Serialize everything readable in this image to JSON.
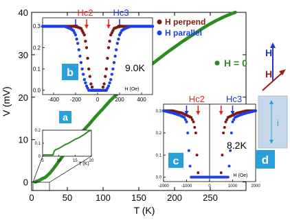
{
  "chart_data": [
    {
      "id": "main",
      "type": "scatter",
      "xlabel": "T (K)",
      "ylabel": "V (mV)",
      "xlim": [
        0,
        300
      ],
      "ylim": [
        -2,
        40
      ],
      "xticks": [
        0,
        50,
        100,
        150,
        200,
        250
      ],
      "yticks": [
        0,
        10,
        20,
        30,
        40
      ],
      "legend": "H = 0",
      "color": "#2e8b22",
      "points": [
        [
          5,
          0
        ],
        [
          8,
          0.2
        ],
        [
          10,
          0.3
        ],
        [
          12,
          0.5
        ],
        [
          15,
          0.8
        ],
        [
          18,
          1.0
        ],
        [
          20,
          1.2
        ],
        [
          25,
          2.0
        ],
        [
          30,
          3.0
        ],
        [
          40,
          5.3
        ],
        [
          50,
          7.5
        ],
        [
          60,
          9.7
        ],
        [
          70,
          11.7
        ],
        [
          80,
          13.5
        ],
        [
          90,
          15.5
        ],
        [
          100,
          17.3
        ],
        [
          110,
          19.2
        ],
        [
          120,
          20.8
        ],
        [
          130,
          22.4
        ],
        [
          140,
          23.9
        ],
        [
          150,
          25.3
        ],
        [
          160,
          26.7
        ],
        [
          170,
          28.0
        ],
        [
          180,
          29.3
        ],
        [
          190,
          30.6
        ],
        [
          200,
          31.8
        ],
        [
          210,
          33.0
        ],
        [
          220,
          34.1
        ],
        [
          230,
          35.2
        ],
        [
          240,
          36.3
        ],
        [
          250,
          37.3
        ],
        [
          260,
          38.2
        ],
        [
          270,
          39.0
        ],
        [
          280,
          39.7
        ],
        [
          285,
          40.0
        ]
      ]
    },
    {
      "id": "a",
      "type": "line",
      "panel_label": "a",
      "xlabel": "T (K)",
      "xlim": [
        5,
        20
      ],
      "ylim": [
        0,
        0.2
      ],
      "xticks": [
        5,
        10,
        15,
        20
      ],
      "yticks": [
        0.0,
        0.1,
        0.2
      ],
      "ytick_labels": [
        "0",
        "0.1",
        "0.2"
      ],
      "color": "#2e8b22",
      "points": [
        [
          5,
          0.01
        ],
        [
          6,
          0.01
        ],
        [
          7,
          0.01
        ],
        [
          8,
          0.01
        ],
        [
          8.2,
          0.01
        ],
        [
          8.6,
          0.04
        ],
        [
          9,
          0.05
        ],
        [
          10,
          0.06
        ],
        [
          11,
          0.075
        ],
        [
          12,
          0.09
        ],
        [
          13,
          0.1
        ],
        [
          14,
          0.115
        ],
        [
          15,
          0.13
        ],
        [
          16,
          0.14
        ],
        [
          17,
          0.155
        ],
        [
          18,
          0.17
        ],
        [
          19,
          0.19
        ],
        [
          20,
          0.2
        ]
      ]
    },
    {
      "id": "b",
      "type": "scatter",
      "panel_label": "b",
      "xlabel": "H (Oe)",
      "annotation": "9.0K",
      "xlim": [
        -500,
        500
      ],
      "ylim": [
        -0.02,
        0.34
      ],
      "xticks": [
        -400,
        -200,
        0,
        200,
        400
      ],
      "yticks": [
        0.0,
        0.1,
        0.2,
        0.3
      ],
      "ytick_labels": [
        "0.0",
        "0.1",
        "0.2",
        "0.3"
      ],
      "markers": [
        {
          "label": "Hc2",
          "x": -100,
          "color": "#e8231f"
        },
        {
          "label": "",
          "x": 100,
          "color": "#e8231f"
        },
        {
          "label": "",
          "x": -200,
          "color": "#1d35c8"
        },
        {
          "label": "Hc3",
          "x": 200,
          "color": "#1d35c8"
        }
      ],
      "series": [
        {
          "name": "H perpend",
          "color": "#7b1818",
          "points": [
            [
              -500,
              0.3
            ],
            [
              -400,
              0.3
            ],
            [
              -300,
              0.3
            ],
            [
              -200,
              0.3
            ],
            [
              -150,
              0.29
            ],
            [
              -120,
              0.26
            ],
            [
              -100,
              0.2
            ],
            [
              -80,
              0.1
            ],
            [
              -60,
              0.03
            ],
            [
              -40,
              0
            ],
            [
              0,
              0
            ],
            [
              40,
              0
            ],
            [
              60,
              0.03
            ],
            [
              80,
              0.1
            ],
            [
              100,
              0.2
            ],
            [
              120,
              0.26
            ],
            [
              150,
              0.29
            ],
            [
              200,
              0.3
            ],
            [
              300,
              0.3
            ],
            [
              400,
              0.3
            ],
            [
              500,
              0.3
            ]
          ]
        },
        {
          "name": "H parallel",
          "color": "#1f3fe6",
          "points": [
            [
              -500,
              0.3
            ],
            [
              -400,
              0.3
            ],
            [
              -300,
              0.3
            ],
            [
              -250,
              0.29
            ],
            [
              -220,
              0.28
            ],
            [
              -200,
              0.26
            ],
            [
              -180,
              0.22
            ],
            [
              -160,
              0.16
            ],
            [
              -140,
              0.1
            ],
            [
              -120,
              0.05
            ],
            [
              -100,
              0.02
            ],
            [
              -80,
              0
            ],
            [
              0,
              0
            ],
            [
              80,
              0
            ],
            [
              100,
              0.02
            ],
            [
              120,
              0.05
            ],
            [
              140,
              0.1
            ],
            [
              160,
              0.16
            ],
            [
              180,
              0.22
            ],
            [
              200,
              0.26
            ],
            [
              220,
              0.28
            ],
            [
              250,
              0.29
            ],
            [
              300,
              0.3
            ],
            [
              400,
              0.3
            ],
            [
              500,
              0.3
            ]
          ]
        }
      ]
    },
    {
      "id": "c",
      "type": "scatter",
      "panel_label": "c",
      "xlabel": "H (Oe)",
      "annotation": "8.2K",
      "xlim": [
        -2000,
        2000
      ],
      "ylim": [
        -0.02,
        0.33
      ],
      "xticks": [
        -2000,
        -1000,
        0,
        1000,
        2000
      ],
      "yticks": [
        0.0,
        0.1,
        0.2,
        0.3
      ],
      "ytick_labels": [
        "0.0",
        "0.1",
        "0.2",
        "0.3"
      ],
      "markers": [
        {
          "label": "Hc2",
          "x": -500,
          "color": "#e8231f"
        },
        {
          "label": "",
          "x": 500,
          "color": "#e8231f"
        },
        {
          "label": "",
          "x": -1000,
          "color": "#1d35c8"
        },
        {
          "label": "Hc3",
          "x": 1000,
          "color": "#1d35c8"
        }
      ],
      "series": [
        {
          "name": "H perpend",
          "color": "#7b1818",
          "points": [
            [
              -2000,
              0.3
            ],
            [
              -1600,
              0.3
            ],
            [
              -1200,
              0.29
            ],
            [
              -1000,
              0.28
            ],
            [
              -800,
              0.27
            ],
            [
              -700,
              0.25
            ],
            [
              -600,
              0.2
            ],
            [
              -550,
              0.1
            ],
            [
              -500,
              0.02
            ],
            [
              -450,
              0
            ],
            [
              0,
              0
            ],
            [
              450,
              0
            ],
            [
              500,
              0.02
            ],
            [
              550,
              0.1
            ],
            [
              600,
              0.2
            ],
            [
              700,
              0.25
            ],
            [
              800,
              0.27
            ],
            [
              1000,
              0.28
            ],
            [
              1200,
              0.29
            ],
            [
              1600,
              0.3
            ],
            [
              2000,
              0.3
            ]
          ]
        },
        {
          "name": "H parallel",
          "color": "#1f3fe6",
          "points": [
            [
              -2000,
              0.3
            ],
            [
              -1600,
              0.29
            ],
            [
              -1300,
              0.28
            ],
            [
              -1100,
              0.27
            ],
            [
              -1000,
              0.25
            ],
            [
              -950,
              0.2
            ],
            [
              -900,
              0.12
            ],
            [
              -850,
              0.05
            ],
            [
              -800,
              0
            ],
            [
              0,
              0
            ],
            [
              800,
              0
            ],
            [
              850,
              0.05
            ],
            [
              900,
              0.12
            ],
            [
              950,
              0.2
            ],
            [
              1000,
              0.25
            ],
            [
              1100,
              0.27
            ],
            [
              1300,
              0.28
            ],
            [
              1600,
              0.29
            ],
            [
              2000,
              0.3
            ]
          ]
        }
      ]
    }
  ],
  "diagram": {
    "h_label_vertical": "H",
    "h_label_tilted": "H",
    "current_label": "i",
    "panel_label": "d",
    "blue": "#1d35c8",
    "red": "#a01818",
    "box_fill": "#c7d7ea",
    "arrow": "#2aa0d8"
  },
  "panel_label_fill": "#2aa0d8"
}
